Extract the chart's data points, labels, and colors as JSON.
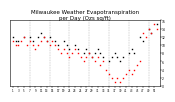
{
  "title": "Milwaukee Weather Evapotranspiration\nper Day (Ozs sq/ft)",
  "title_fontsize": 4.0,
  "background_color": "#ffffff",
  "series1_color": "#000000",
  "series2_color": "#ff0000",
  "xlim": [
    0,
    53
  ],
  "ylim": [
    0,
    16
  ],
  "series1_x": [
    1,
    2,
    3,
    5,
    7,
    8,
    10,
    11,
    12,
    13,
    14,
    16,
    17,
    19,
    20,
    21,
    23,
    24,
    26,
    27,
    28,
    29,
    30,
    31,
    32,
    33,
    35,
    36,
    37,
    38,
    39,
    40,
    42,
    43,
    44,
    46,
    47,
    49,
    50,
    52
  ],
  "series1_y": [
    12,
    11,
    11,
    12,
    12,
    11,
    12,
    13,
    12,
    11,
    12,
    11,
    10,
    11,
    10,
    9,
    10,
    9,
    8,
    9,
    8,
    7,
    8,
    9,
    8,
    7,
    6,
    7,
    8,
    7,
    6,
    7,
    8,
    9,
    8,
    12,
    11,
    14,
    13,
    15
  ],
  "series2_x": [
    1,
    2,
    3,
    4,
    5,
    6,
    7,
    8,
    9,
    10,
    11,
    12,
    13,
    14,
    15,
    16,
    17,
    18,
    19,
    20,
    21,
    22,
    23,
    24,
    25,
    26,
    27,
    28,
    29,
    30,
    31,
    32,
    33,
    34,
    35,
    36,
    37,
    38,
    39,
    40,
    41,
    42,
    43,
    44,
    45,
    46,
    47,
    48,
    49,
    50,
    51,
    52
  ],
  "series2_y": [
    11,
    10,
    10,
    11,
    12,
    10,
    11,
    10,
    9,
    10,
    11,
    12,
    11,
    10,
    11,
    10,
    9,
    8,
    9,
    8,
    7,
    8,
    9,
    8,
    7,
    6,
    7,
    8,
    7,
    6,
    7,
    5,
    6,
    4,
    3,
    2,
    1,
    2,
    1,
    2,
    3,
    4,
    3,
    4,
    5,
    6,
    13,
    12,
    14,
    13,
    15,
    14
  ],
  "vline_positions": [
    7,
    14,
    21,
    28,
    35,
    42,
    49
  ],
  "xtick_positions": [
    1,
    3,
    5,
    7,
    9,
    11,
    13,
    15,
    17,
    19,
    21,
    23,
    25,
    27,
    29,
    31,
    33,
    35,
    37,
    39,
    41,
    43,
    45,
    47,
    49,
    51
  ],
  "ytick_positions": [
    0,
    2,
    4,
    6,
    8,
    10,
    12,
    14,
    16
  ],
  "ytick_labels": [
    "0",
    "2",
    "4",
    "6",
    "8",
    "10",
    "12",
    "14",
    "16"
  ]
}
